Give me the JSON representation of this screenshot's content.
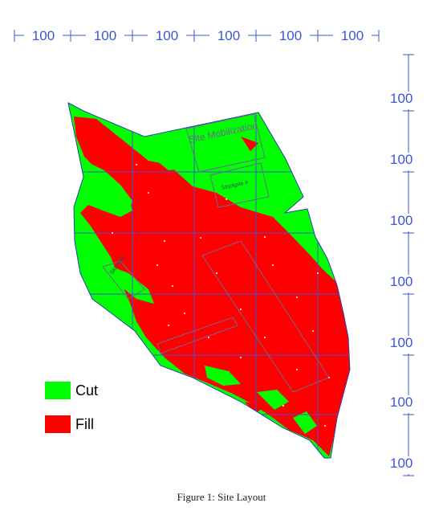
{
  "scale": {
    "top_labels": [
      "100",
      "100",
      "100",
      "100",
      "100",
      "100"
    ],
    "right_labels": [
      "100",
      "100",
      "100",
      "100",
      "100",
      "100",
      "100"
    ]
  },
  "zones": {
    "site_mobilization": "Site Mobilization",
    "stockpile_a": "Stockpile #",
    "stockpile_b": "Stockpile"
  },
  "legend": {
    "cut_label": "Cut",
    "fill_label": "Fill"
  },
  "colors": {
    "cut": "#00ff00",
    "fill": "#ff0000",
    "grid": "#3a56d6"
  },
  "caption": "Figure 1: Site Layout"
}
